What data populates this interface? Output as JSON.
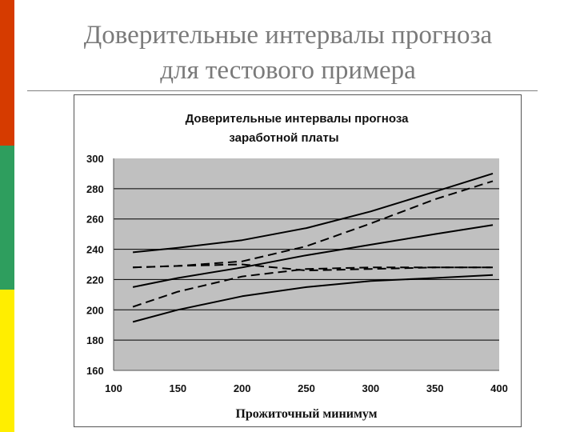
{
  "slide": {
    "title_line1": "Доверительные интервалы прогноза",
    "title_line2": "для тестового примера"
  },
  "colors": {
    "accent_red": "#d63b00",
    "accent_green": "#2e9e5e",
    "accent_yellow": "#ffee00",
    "plot_background": "#c0c0c0",
    "line_color": "#000000"
  },
  "chart_data": {
    "type": "line",
    "title_line1": "Доверительные интервалы прогноза",
    "title_line2": "заработной платы",
    "xlabel": "Прожиточный минимум",
    "ylabel": "",
    "xlim": [
      100,
      400
    ],
    "ylim": [
      160,
      300
    ],
    "x_ticks": [
      "100",
      "150",
      "200",
      "250",
      "300",
      "350",
      "400"
    ],
    "y_ticks": [
      "300",
      "280",
      "260",
      "240",
      "220",
      "200",
      "180",
      "160"
    ],
    "grid": "horizontal",
    "series": [
      {
        "style": "solid",
        "x": [
          115,
          150,
          200,
          250,
          300,
          350,
          395
        ],
        "y": [
          238,
          241,
          246,
          254,
          265,
          278,
          290
        ]
      },
      {
        "style": "solid",
        "x": [
          115,
          150,
          200,
          250,
          300,
          350,
          395
        ],
        "y": [
          215,
          221,
          228,
          236,
          243,
          250,
          256
        ]
      },
      {
        "style": "solid",
        "x": [
          115,
          150,
          200,
          250,
          300,
          350,
          395
        ],
        "y": [
          192,
          200,
          209,
          215,
          219,
          221,
          223
        ]
      },
      {
        "style": "dashed",
        "x": [
          115,
          150,
          200,
          250,
          300,
          350,
          395
        ],
        "y": [
          228,
          229,
          232,
          242,
          257,
          273,
          285
        ]
      },
      {
        "style": "dashed",
        "x": [
          115,
          150,
          200,
          250,
          300,
          350,
          395
        ],
        "y": [
          228,
          229,
          230,
          226,
          227,
          228,
          228
        ]
      },
      {
        "style": "dashed",
        "x": [
          115,
          150,
          200,
          250,
          300,
          350,
          395
        ],
        "y": [
          202,
          212,
          222,
          227,
          228,
          228,
          228
        ]
      }
    ]
  }
}
